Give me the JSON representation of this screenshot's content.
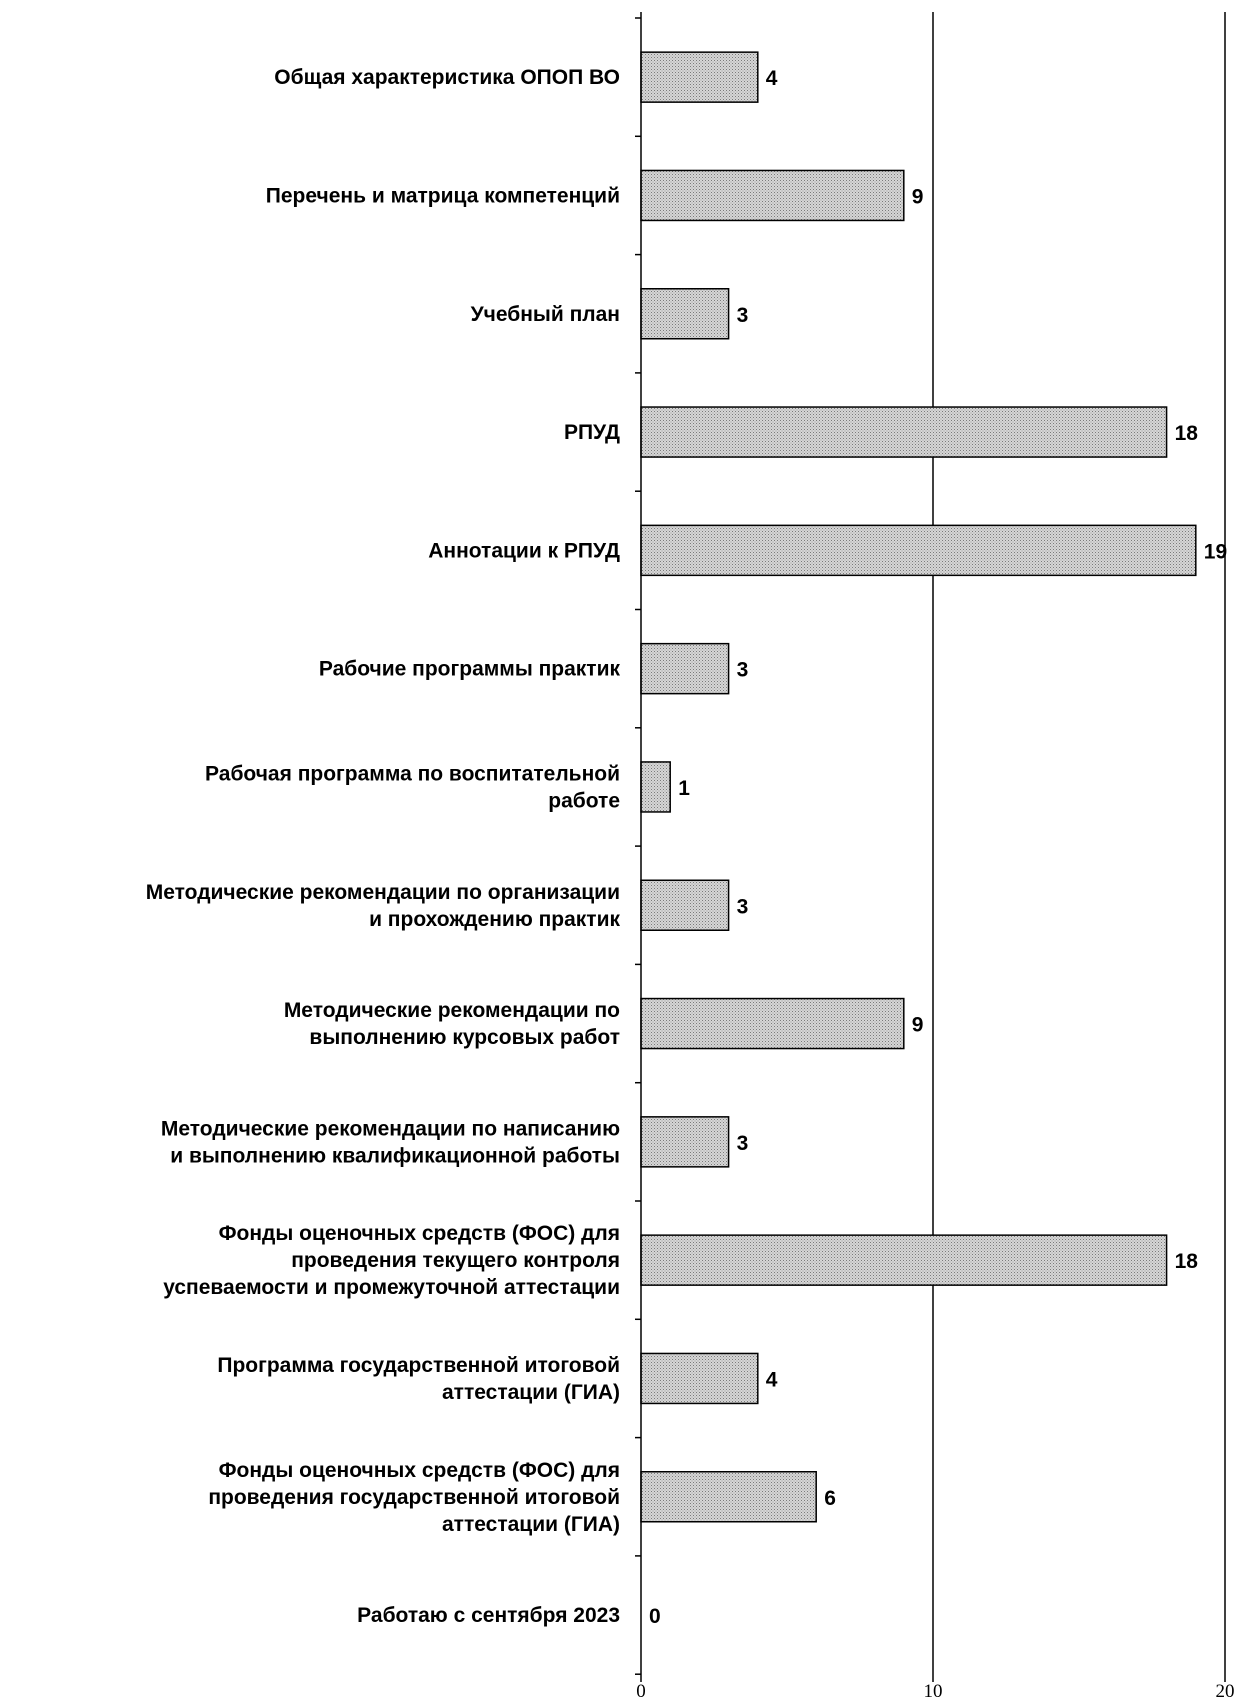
{
  "chart_data": {
    "type": "bar",
    "orientation": "horizontal",
    "categories": [
      [
        "Общая характеристика ОПОП ВО"
      ],
      [
        "Перечень и матрица компетенций"
      ],
      [
        "Учебный план"
      ],
      [
        "РПУД"
      ],
      [
        "Аннотации к РПУД"
      ],
      [
        "Рабочие программы практик"
      ],
      [
        "Рабочая программа по воспитательной",
        "работе"
      ],
      [
        "Методические рекомендации по организации",
        "и прохождению практик"
      ],
      [
        "Методические рекомендации по",
        "выполнению курсовых работ"
      ],
      [
        "Методические рекомендации по написанию",
        "и выполнению квалификационной работы"
      ],
      [
        "Фонды оценочных средств (ФОС) для",
        "проведения текущего контроля",
        "успеваемости и промежуточной аттестации"
      ],
      [
        "Программа государственной итоговой",
        "аттестации (ГИА)"
      ],
      [
        "Фонды оценочных средств (ФОС) для",
        "проведения государственной итоговой",
        "аттестации (ГИА)"
      ],
      [
        "Работаю с сентября 2023"
      ]
    ],
    "values": [
      4,
      9,
      3,
      18,
      19,
      3,
      1,
      3,
      9,
      3,
      18,
      4,
      6,
      0
    ],
    "xlim": [
      0,
      20
    ],
    "xticks": [
      0,
      10,
      20
    ],
    "gridlines": [
      10,
      20
    ],
    "bar_fill": "#c8c8c8",
    "title": "",
    "xlabel": "",
    "ylabel": ""
  }
}
